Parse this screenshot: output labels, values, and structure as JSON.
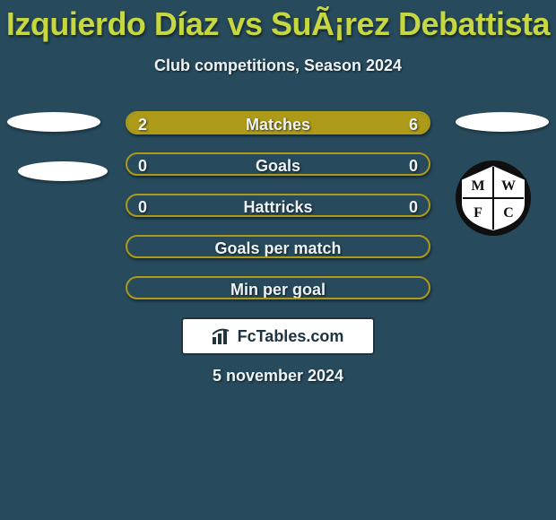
{
  "colors": {
    "page_bg": "#274b5d",
    "title_color": "#c7d740",
    "subtitle_color": "#eef3f6",
    "date_color": "#eef3f6",
    "bar_base": "#274b5d",
    "bar_border": "#ad9a18",
    "bar_fill": "#ad9a18",
    "bar_text": "#eef3f6",
    "watermark_bg": "#ffffff",
    "watermark_border": "#20333e",
    "watermark_text": "#20333e",
    "crest_black": "#0f0f0f",
    "crest_white": "#ffffff"
  },
  "header": {
    "title": "Izquierdo Díaz vs SuÃ¡rez Debattista",
    "subtitle": "Club competitions, Season 2024"
  },
  "footer": {
    "date": "5 november 2024"
  },
  "watermark": {
    "text": "FcTables.com"
  },
  "crest": {
    "top_text": "M W",
    "bottom_text": "F C"
  },
  "bars": [
    {
      "label": "Matches",
      "left_val": "2",
      "right_val": "6",
      "left_pct": 25,
      "right_pct": 75
    },
    {
      "label": "Goals",
      "left_val": "0",
      "right_val": "0",
      "left_pct": 0,
      "right_pct": 0
    },
    {
      "label": "Hattricks",
      "left_val": "0",
      "right_val": "0",
      "left_pct": 0,
      "right_pct": 0
    },
    {
      "label": "Goals per match",
      "left_val": "",
      "right_val": "",
      "left_pct": 0,
      "right_pct": 0
    },
    {
      "label": "Min per goal",
      "left_val": "",
      "right_val": "",
      "left_pct": 0,
      "right_pct": 0
    }
  ]
}
